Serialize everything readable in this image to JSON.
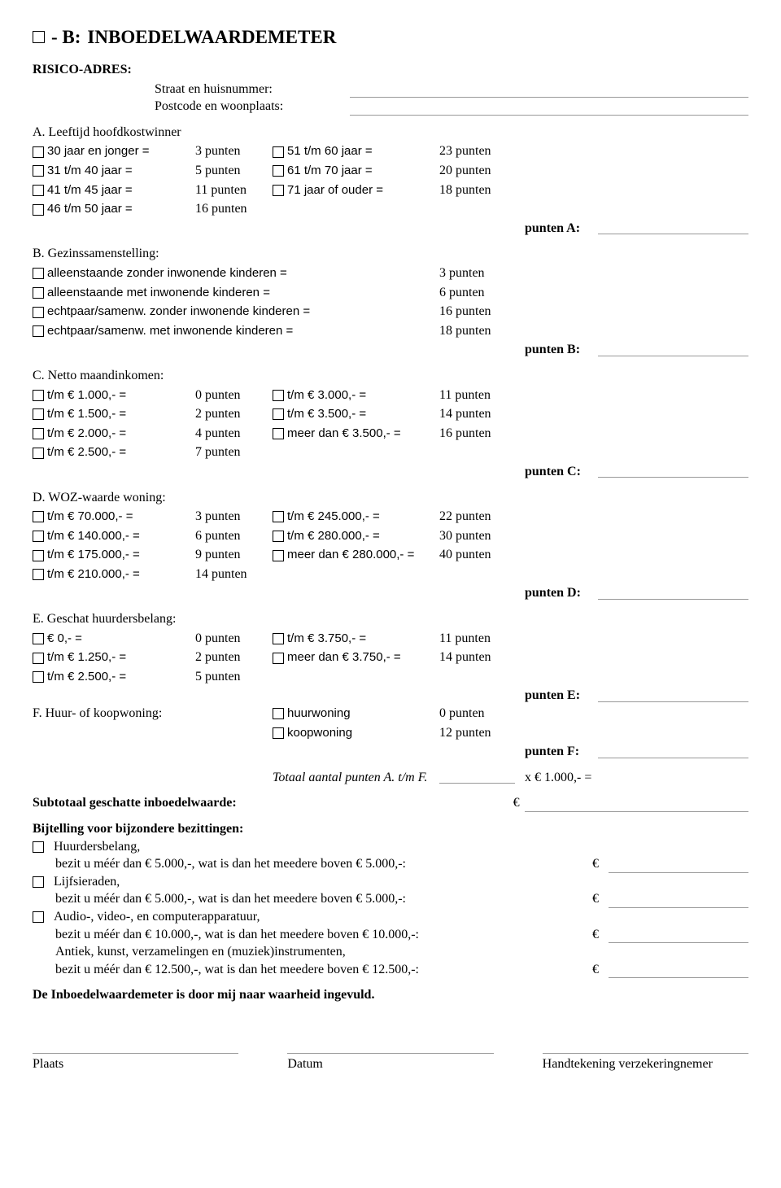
{
  "title_prefix": " -  B:",
  "title_main": "INBOEDELWAARDEMETER",
  "risico": "RISICO-ADRES:",
  "addr1": "Straat en huisnummer:",
  "addr2": "Postcode en woonplaats:",
  "A": {
    "heading": "A. Leeftijd hoofdkostwinner",
    "r": [
      {
        "l1": "30 jaar en jonger  =",
        "p1": "3 punten",
        "l2": "51 t/m 60 jaar  =",
        "p2": "23 punten"
      },
      {
        "l1": "31 t/m 40 jaar  =",
        "p1": "5 punten",
        "l2": "61 t/m 70 jaar  =",
        "p2": "20 punten"
      },
      {
        "l1": "41 t/m 45 jaar  =",
        "p1": "11 punten",
        "l2": "71 jaar of ouder  =",
        "p2": "18 punten"
      },
      {
        "l1": "46 t/m 50 jaar  =",
        "p1": "16 punten",
        "l2": "",
        "p2": ""
      }
    ],
    "sum": "punten A:"
  },
  "B": {
    "heading": "B. Gezinssamenstelling:",
    "r": [
      {
        "l": "alleenstaande zonder inwonende kinderen  =",
        "p": "3 punten"
      },
      {
        "l": "alleenstaande met inwonende kinderen  =",
        "p": "6 punten"
      },
      {
        "l": "echtpaar/samenw. zonder inwonende kinderen  =",
        "p": "16 punten"
      },
      {
        "l": "echtpaar/samenw. met inwonende kinderen  =",
        "p": "18 punten"
      }
    ],
    "sum": "punten B:"
  },
  "C": {
    "heading": "C. Netto maandinkomen:",
    "r": [
      {
        "l1": "t/m € 1.000,-  =",
        "p1": "0 punten",
        "l2": "t/m € 3.000,-  =",
        "p2": "11 punten"
      },
      {
        "l1": "t/m € 1.500,-  =",
        "p1": "2 punten",
        "l2": "t/m € 3.500,-  =",
        "p2": "14 punten"
      },
      {
        "l1": "t/m € 2.000,-  =",
        "p1": "4 punten",
        "l2": "meer dan € 3.500,-  =",
        "p2": "16 punten"
      },
      {
        "l1": "t/m € 2.500,-  =",
        "p1": "7 punten",
        "l2": "",
        "p2": ""
      }
    ],
    "sum": "punten C:"
  },
  "D": {
    "heading": "D. WOZ-waarde woning:",
    "r": [
      {
        "l1": "t/m €  70.000,-  =",
        "p1": "3 punten",
        "l2": "t/m € 245.000,-  =",
        "p2": "22 punten"
      },
      {
        "l1": "t/m € 140.000,-  =",
        "p1": "6 punten",
        "l2": "t/m € 280.000,-  =",
        "p2": "30 punten"
      },
      {
        "l1": "t/m € 175.000,-  =",
        "p1": "9 punten",
        "l2": "meer dan € 280.000,-  =",
        "p2": "40 punten"
      },
      {
        "l1": "t/m € 210.000,-  =",
        "p1": "14 punten",
        "l2": "",
        "p2": ""
      }
    ],
    "sum": "punten D:"
  },
  "E": {
    "heading": "E. Geschat huurdersbelang:",
    "r": [
      {
        "l1": "€  0,-  =",
        "p1": "0 punten",
        "l2": "t/m € 3.750,-  =",
        "p2": "11 punten"
      },
      {
        "l1": "t/m € 1.250,-  =",
        "p1": "2 punten",
        "l2": "meer dan € 3.750,-  =",
        "p2": "14 punten"
      },
      {
        "l1": "t/m € 2.500,-  =",
        "p1": "5 punten",
        "l2": "",
        "p2": ""
      }
    ],
    "sum": "punten E:"
  },
  "F": {
    "heading": "F. Huur- of koopwoning:",
    "r": [
      {
        "l2": "huurwoning",
        "p2": "0 punten"
      },
      {
        "l2": "koopwoning",
        "p2": "12 punten"
      }
    ],
    "sum": "punten F:"
  },
  "totaal": "Totaal aantal punten A. t/m F.",
  "multiplier": "x € 1.000,- =",
  "subtotal": "Subtotaal geschatte inboedelwaarde:",
  "bij_h": "Bijtelling voor bijzondere bezittingen:",
  "bij": [
    {
      "t1": "Huurdersbelang,",
      "t2": "bezit u méér dan € 5.000,-, wat is dan het meedere boven € 5.000,-:",
      "cb": true
    },
    {
      "t1": "Lijfsieraden,",
      "t2": "bezit u méér dan € 5.000,-, wat is dan het meedere boven € 5.000,-:",
      "cb": true
    },
    {
      "t1": "Audio-, video-, en computerapparatuur,",
      "t2": "bezit u méér dan € 10.000,-, wat is dan het meedere boven € 10.000,-:",
      "cb": true
    },
    {
      "t1": "Antiek, kunst, verzamelingen en (muziek)instrumenten,",
      "t2": "bezit u méér dan € 12.500,-, wat is dan het meedere boven € 12.500,-:",
      "cb": false
    }
  ],
  "decl": "De Inboedelwaardemeter is door mij naar waarheid ingevuld.",
  "sig": {
    "plaats": "Plaats",
    "datum": "Datum",
    "hand": "Handtekening verzekeringnemer"
  },
  "euro": "€"
}
